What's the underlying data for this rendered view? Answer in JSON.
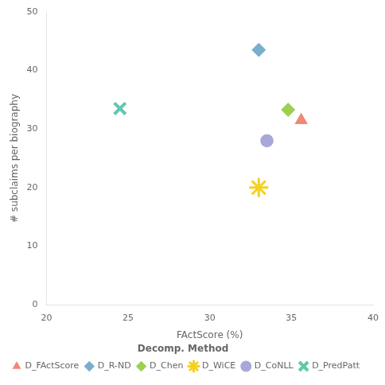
{
  "chart_data": {
    "type": "scatter",
    "xlabel": "FActScore (%)",
    "ylabel": "# subclaims per biography",
    "xlim": [
      20,
      40
    ],
    "ylim": [
      0,
      50
    ],
    "xticks": [
      20,
      25,
      30,
      35,
      40
    ],
    "yticks": [
      0,
      10,
      20,
      30,
      40,
      50
    ],
    "grid": false,
    "legend": "lower left",
    "legend_title": "Decomp. Method",
    "series": [
      {
        "name": "D_FActScore",
        "color": "#f08878",
        "marker": "triangle",
        "x": [
          35.6
        ],
        "y": [
          31.5
        ]
      },
      {
        "name": "D_R-ND",
        "color": "#7aaecc",
        "marker": "diamond",
        "x": [
          33.0
        ],
        "y": [
          43.5
        ]
      },
      {
        "name": "D_Chen",
        "color": "#9ecf50",
        "marker": "diamond",
        "x": [
          34.8
        ],
        "y": [
          33.3
        ]
      },
      {
        "name": "D_WiCE",
        "color": "#f5d020",
        "marker": "star",
        "x": [
          33.0
        ],
        "y": [
          20.0
        ]
      },
      {
        "name": "D_CoNLL",
        "color": "#a8a8d8",
        "marker": "octagon",
        "x": [
          33.5
        ],
        "y": [
          28.0
        ]
      },
      {
        "name": "D_PredPatt",
        "color": "#60c8b0",
        "marker": "x",
        "x": [
          24.5
        ],
        "y": [
          33.5
        ]
      }
    ]
  }
}
